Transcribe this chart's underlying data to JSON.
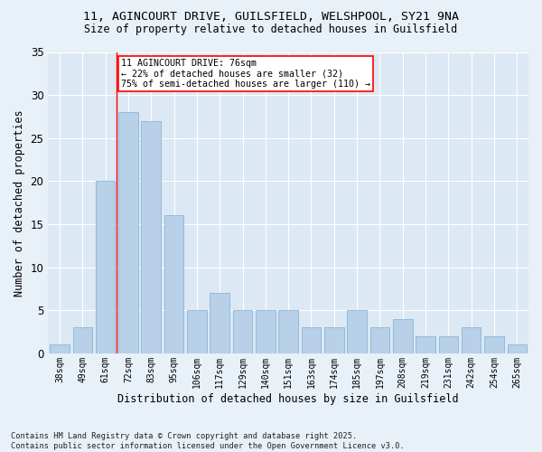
{
  "title": "11, AGINCOURT DRIVE, GUILSFIELD, WELSHPOOL, SY21 9NA",
  "subtitle": "Size of property relative to detached houses in Guilsfield",
  "xlabel": "Distribution of detached houses by size in Guilsfield",
  "ylabel": "Number of detached properties",
  "categories": [
    "38sqm",
    "49sqm",
    "61sqm",
    "72sqm",
    "83sqm",
    "95sqm",
    "106sqm",
    "117sqm",
    "129sqm",
    "140sqm",
    "151sqm",
    "163sqm",
    "174sqm",
    "185sqm",
    "197sqm",
    "208sqm",
    "219sqm",
    "231sqm",
    "242sqm",
    "254sqm",
    "265sqm"
  ],
  "values": [
    1,
    3,
    20,
    28,
    27,
    16,
    5,
    7,
    5,
    5,
    5,
    3,
    3,
    5,
    3,
    4,
    2,
    2,
    3,
    2,
    1
  ],
  "bar_color": "#b8d0e8",
  "bar_edge_color": "#7aafd4",
  "vline_color": "red",
  "annotation_text": "11 AGINCOURT DRIVE: 76sqm\n← 22% of detached houses are smaller (32)\n75% of semi-detached houses are larger (110) →",
  "annotation_box_color": "white",
  "annotation_box_edge_color": "red",
  "ylim": [
    0,
    35
  ],
  "yticks": [
    0,
    5,
    10,
    15,
    20,
    25,
    30,
    35
  ],
  "footnote": "Contains HM Land Registry data © Crown copyright and database right 2025.\nContains public sector information licensed under the Open Government Licence v3.0.",
  "bg_color": "#e8f0f8",
  "plot_bg_color": "#dce8f4",
  "grid_color": "white"
}
